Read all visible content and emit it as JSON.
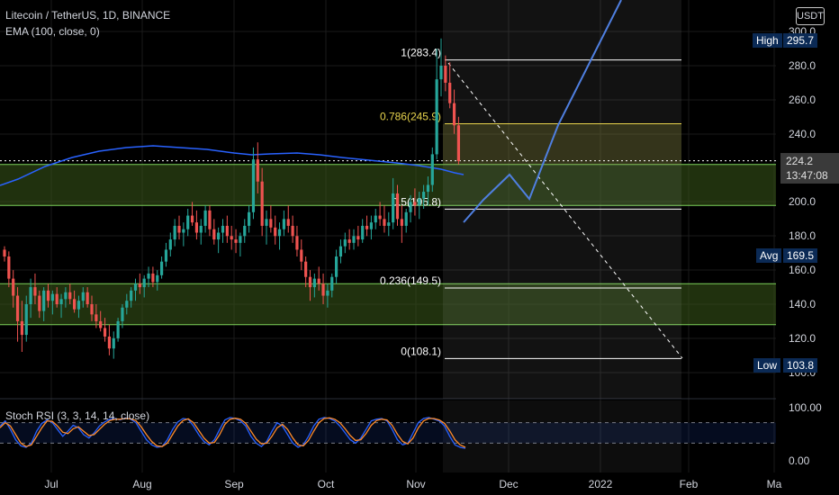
{
  "header": {
    "symbol_line": "Litecoin / TetherUS, 1D, BINANCE",
    "indicator_line": "EMA (100, close, 0)"
  },
  "currency_button": "USDT",
  "tags": {
    "high_label": "High",
    "high_value": "295.7",
    "avg_label": "Avg",
    "avg_value": "169.5",
    "low_label": "Low",
    "low_value": "103.8",
    "last_price": "224.2",
    "countdown": "13:47:08"
  },
  "stoch": {
    "label": "Stoch RSI (3, 3, 14, 14, close)",
    "ticks": [
      "100.00",
      "0.00"
    ]
  },
  "colors": {
    "background": "#000000",
    "up_candle": "#26a69a",
    "down_candle": "#ef5350",
    "ema": "#2962ff",
    "zone_fill": "#3a5a1a",
    "zone_line": "#7cd25a",
    "fib_gold": "#e8d44d",
    "fib_white": "#ffffff",
    "projection": "#4f7fe0",
    "stoch_k": "#2962ff",
    "stoch_d": "#ff8c2a"
  },
  "chart_data": [
    {
      "type": "candlestick",
      "title": "Litecoin / TetherUS, 1D, BINANCE",
      "y_ticks": [
        "300.0",
        "280.0",
        "260.0",
        "240.0",
        "200.0",
        "180.0",
        "160.0",
        "140.0",
        "120.0",
        "100.0"
      ],
      "x_ticks": [
        "Jul",
        "Aug",
        "Sep",
        "Oct",
        "Nov",
        "Dec",
        "2022",
        "Feb",
        "Ma"
      ],
      "ylim": [
        100,
        300
      ],
      "high": 295.7,
      "low": 103.8,
      "average": 169.5,
      "last": 224.2,
      "grid": true,
      "candles_ohlc": [
        [
          172,
          174,
          165,
          168
        ],
        [
          168,
          171,
          150,
          155
        ],
        [
          155,
          160,
          138,
          145
        ],
        [
          145,
          150,
          118,
          130
        ],
        [
          130,
          142,
          112,
          122
        ],
        [
          122,
          145,
          118,
          140
        ],
        [
          140,
          155,
          132,
          150
        ],
        [
          150,
          158,
          140,
          145
        ],
        [
          145,
          148,
          132,
          136
        ],
        [
          136,
          150,
          130,
          148
        ],
        [
          148,
          152,
          138,
          142
        ],
        [
          142,
          148,
          134,
          146
        ],
        [
          146,
          150,
          138,
          140
        ],
        [
          140,
          146,
          132,
          143
        ],
        [
          143,
          150,
          138,
          147
        ],
        [
          147,
          152,
          140,
          143
        ],
        [
          143,
          148,
          135,
          137
        ],
        [
          137,
          145,
          132,
          142
        ],
        [
          142,
          150,
          138,
          147
        ],
        [
          147,
          150,
          138,
          140
        ],
        [
          140,
          145,
          130,
          134
        ],
        [
          134,
          140,
          126,
          130
        ],
        [
          130,
          136,
          124,
          126
        ],
        [
          126,
          132,
          118,
          121
        ],
        [
          121,
          128,
          110,
          114
        ],
        [
          114,
          124,
          108,
          120
        ],
        [
          120,
          132,
          118,
          130
        ],
        [
          130,
          140,
          126,
          138
        ],
        [
          138,
          146,
          134,
          142
        ],
        [
          142,
          150,
          138,
          148
        ],
        [
          148,
          155,
          142,
          152
        ],
        [
          152,
          158,
          146,
          150
        ],
        [
          150,
          157,
          144,
          155
        ],
        [
          155,
          162,
          150,
          158
        ],
        [
          158,
          162,
          150,
          153
        ],
        [
          153,
          160,
          148,
          157
        ],
        [
          157,
          168,
          155,
          165
        ],
        [
          165,
          176,
          162,
          172
        ],
        [
          172,
          182,
          168,
          178
        ],
        [
          178,
          190,
          174,
          186
        ],
        [
          186,
          192,
          178,
          182
        ],
        [
          182,
          188,
          174,
          184
        ],
        [
          184,
          196,
          180,
          192
        ],
        [
          192,
          200,
          186,
          188
        ],
        [
          188,
          195,
          178,
          182
        ],
        [
          182,
          190,
          175,
          186
        ],
        [
          186,
          198,
          182,
          195
        ],
        [
          195,
          198,
          180,
          184
        ],
        [
          184,
          190,
          175,
          178
        ],
        [
          178,
          185,
          170,
          182
        ],
        [
          182,
          190,
          176,
          186
        ],
        [
          186,
          192,
          176,
          180
        ],
        [
          180,
          186,
          172,
          178
        ],
        [
          178,
          184,
          170,
          176
        ],
        [
          176,
          182,
          168,
          180
        ],
        [
          180,
          190,
          176,
          186
        ],
        [
          186,
          198,
          182,
          194
        ],
        [
          194,
          232,
          190,
          225
        ],
        [
          225,
          235,
          205,
          212
        ],
        [
          212,
          220,
          180,
          186
        ],
        [
          186,
          195,
          175,
          190
        ],
        [
          190,
          198,
          182,
          185
        ],
        [
          185,
          192,
          175,
          180
        ],
        [
          180,
          188,
          172,
          184
        ],
        [
          184,
          195,
          180,
          190
        ],
        [
          190,
          198,
          182,
          186
        ],
        [
          186,
          192,
          176,
          180
        ],
        [
          180,
          186,
          168,
          172
        ],
        [
          172,
          178,
          160,
          165
        ],
        [
          165,
          168,
          150,
          156
        ],
        [
          156,
          160,
          142,
          150
        ],
        [
          150,
          158,
          144,
          155
        ],
        [
          155,
          162,
          148,
          152
        ],
        [
          152,
          158,
          140,
          145
        ],
        [
          145,
          152,
          138,
          148
        ],
        [
          148,
          158,
          144,
          156
        ],
        [
          156,
          172,
          152,
          168
        ],
        [
          168,
          178,
          164,
          174
        ],
        [
          174,
          182,
          170,
          178
        ],
        [
          178,
          184,
          172,
          176
        ],
        [
          176,
          184,
          172,
          180
        ],
        [
          180,
          186,
          174,
          178
        ],
        [
          178,
          190,
          176,
          186
        ],
        [
          186,
          192,
          180,
          184
        ],
        [
          184,
          192,
          178,
          188
        ],
        [
          188,
          196,
          184,
          192
        ],
        [
          192,
          200,
          186,
          190
        ],
        [
          190,
          198,
          182,
          186
        ],
        [
          186,
          194,
          180,
          188
        ],
        [
          188,
          214,
          184,
          205
        ],
        [
          205,
          210,
          186,
          190
        ],
        [
          190,
          198,
          176,
          186
        ],
        [
          186,
          196,
          182,
          194
        ],
        [
          194,
          204,
          188,
          200
        ],
        [
          200,
          208,
          192,
          198
        ],
        [
          198,
          206,
          190,
          202
        ],
        [
          202,
          210,
          196,
          206
        ],
        [
          206,
          215,
          198,
          210
        ],
        [
          210,
          232,
          206,
          228
        ],
        [
          228,
          290,
          225,
          272
        ],
        [
          272,
          296,
          262,
          280
        ],
        [
          280,
          286,
          265,
          270
        ],
        [
          270,
          282,
          255,
          258
        ],
        [
          258,
          266,
          240,
          245
        ],
        [
          245,
          250,
          222,
          224
        ]
      ],
      "ema_100": [
        [
          0,
          206
        ],
        [
          20,
          199
        ],
        [
          50,
          185
        ],
        [
          80,
          175
        ],
        [
          110,
          168
        ],
        [
          140,
          164
        ],
        [
          170,
          162
        ],
        [
          200,
          164
        ],
        [
          230,
          166
        ],
        [
          260,
          170
        ],
        [
          280,
          172
        ],
        [
          300,
          171
        ],
        [
          330,
          170
        ],
        [
          355,
          172
        ],
        [
          380,
          175
        ],
        [
          410,
          178
        ],
        [
          440,
          181
        ],
        [
          465,
          184
        ],
        [
          490,
          188
        ],
        [
          505,
          192
        ],
        [
          515,
          194
        ]
      ],
      "fibonacci": [
        {
          "label": "1(283.4)",
          "value": 283.4
        },
        {
          "label": "0.786(245.9)",
          "value": 245.9
        },
        {
          "label": "0.5(195.8)",
          "value": 195.8
        },
        {
          "label": "0.236(149.5)",
          "value": 149.5
        },
        {
          "label": "0(108.1)",
          "value": 108.1
        }
      ],
      "zones": [
        {
          "from": 198,
          "to": 222
        },
        {
          "from": 128,
          "to": 152
        }
      ],
      "projection_path": [
        [
          515,
          247
        ],
        [
          537,
          222
        ],
        [
          566,
          194
        ],
        [
          588,
          221
        ],
        [
          620,
          139
        ],
        [
          690,
          0
        ]
      ],
      "dashed_trend": [
        [
          498,
          70
        ],
        [
          758,
          398
        ]
      ]
    },
    {
      "type": "line",
      "title": "Stoch RSI (3, 3, 14, 14, close)",
      "ylim": [
        0,
        100
      ],
      "y_ticks": [
        "100.00",
        "0.00"
      ],
      "series": [
        {
          "name": "K",
          "values": [
            70,
            85,
            60,
            30,
            12,
            8,
            20,
            55,
            78,
            88,
            80,
            60,
            40,
            55,
            72,
            65,
            45,
            35,
            50,
            70,
            82,
            90,
            92,
            88,
            94,
            90,
            80,
            55,
            30,
            15,
            8,
            10,
            30,
            60,
            82,
            92,
            90,
            70,
            45,
            25,
            15,
            30,
            60,
            88,
            95,
            92,
            85,
            70,
            40,
            20,
            10,
            25,
            55,
            80,
            70,
            45,
            20,
            8,
            15,
            40,
            70,
            90,
            95,
            92,
            85,
            70,
            50,
            30,
            20,
            35,
            60,
            85,
            90,
            92,
            85,
            60,
            30,
            15,
            20,
            50,
            80,
            92,
            95,
            90,
            85,
            70,
            40,
            15,
            8,
            5
          ]
        },
        {
          "name": "D",
          "values": [
            65,
            80,
            70,
            45,
            20,
            10,
            15,
            40,
            65,
            85,
            84,
            70,
            52,
            48,
            62,
            68,
            55,
            42,
            45,
            60,
            75,
            86,
            90,
            90,
            92,
            91,
            86,
            68,
            45,
            25,
            12,
            10,
            20,
            45,
            70,
            86,
            91,
            80,
            58,
            35,
            20,
            22,
            45,
            75,
            90,
            93,
            90,
            78,
            55,
            32,
            18,
            20,
            40,
            65,
            75,
            60,
            35,
            15,
            12,
            28,
            55,
            80,
            92,
            94,
            90,
            80,
            62,
            42,
            28,
            30,
            48,
            72,
            86,
            90,
            88,
            72,
            46,
            25,
            18,
            35,
            65,
            85,
            92,
            92,
            88,
            78,
            56,
            30,
            15,
            8
          ]
        }
      ]
    }
  ]
}
